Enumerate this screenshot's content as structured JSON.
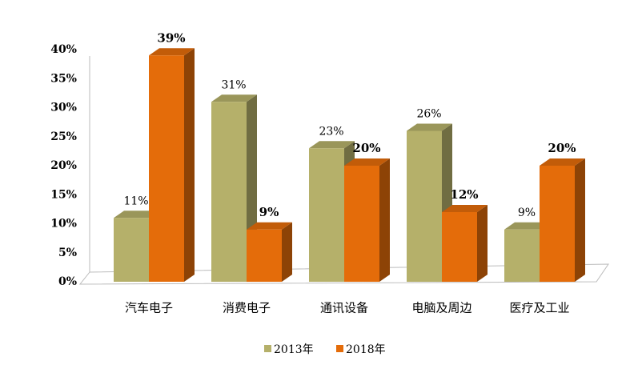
{
  "chart_data": {
    "type": "bar3d",
    "categories": [
      "汽车电子",
      "消费电子",
      "通讯设备",
      "电脑及周边",
      "医疗及工业"
    ],
    "series": [
      {
        "name": "2013年",
        "color": "#b5b06a",
        "values": [
          11,
          31,
          23,
          26,
          9
        ],
        "value_labels": [
          "11%",
          "31%",
          "23%",
          "26%",
          "9%"
        ]
      },
      {
        "name": "2018年",
        "color": "#e46c0a",
        "values": [
          39,
          9,
          20,
          12,
          20
        ],
        "value_labels": [
          "39%",
          "9%",
          "20%",
          "12%",
          "20%"
        ]
      }
    ],
    "ylim": [
      0,
      40
    ],
    "yticks": [
      {
        "value": 0,
        "label": "0%"
      },
      {
        "value": 5,
        "label": "5%"
      },
      {
        "value": 10,
        "label": "10%"
      },
      {
        "value": 15,
        "label": "15%"
      },
      {
        "value": 20,
        "label": "20%"
      },
      {
        "value": 25,
        "label": "25%"
      },
      {
        "value": 30,
        "label": "30%"
      },
      {
        "value": 35,
        "label": "35%"
      },
      {
        "value": 40,
        "label": "40%"
      }
    ],
    "legend": "bottom"
  }
}
